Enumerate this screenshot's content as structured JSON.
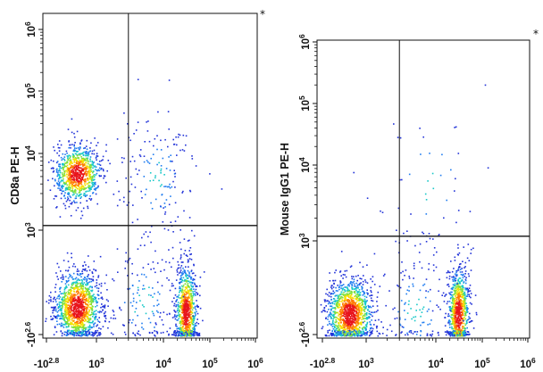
{
  "chart_data": [
    {
      "type": "scatter",
      "title": "",
      "ylabel": "CD8a PE-H",
      "xlabel": "",
      "xscale": "biexponential-log",
      "yscale": "biexponential-log",
      "xlim": [
        -631,
        1000000
      ],
      "ylim": [
        -398,
        1000000
      ],
      "x_ticks": [
        {
          "value": -631,
          "label": "-10",
          "exp": "2.8"
        },
        {
          "value": 1000,
          "label": "10",
          "exp": "3"
        },
        {
          "value": 10000,
          "label": "10",
          "exp": "4"
        },
        {
          "value": 100000,
          "label": "10",
          "exp": "5"
        },
        {
          "value": 1000000,
          "label": "10",
          "exp": "6"
        }
      ],
      "y_ticks": [
        {
          "value": -398,
          "label": "-10",
          "exp": "2.6"
        },
        {
          "value": 1000,
          "label": "10",
          "exp": "3"
        },
        {
          "value": 10000,
          "label": "10",
          "exp": "4"
        },
        {
          "value": 100000,
          "label": "10",
          "exp": "5"
        },
        {
          "value": 1000000,
          "label": "10",
          "exp": "6"
        }
      ],
      "gate": {
        "x": 3000,
        "y": 1150
      },
      "corner_mark": "*",
      "populations": [
        {
          "x": 600,
          "y": 5500,
          "density": "high"
        },
        {
          "x": 600,
          "y": 250,
          "density": "high"
        },
        {
          "x": 30000,
          "y": 200,
          "density": "high"
        },
        {
          "x": 8000,
          "y": 5000,
          "density": "low"
        },
        {
          "x": 5000,
          "y": 300,
          "density": "low"
        }
      ]
    },
    {
      "type": "scatter",
      "title": "",
      "ylabel": "Mouse IgG1 PE-H",
      "xlabel": "",
      "xscale": "biexponential-log",
      "yscale": "biexponential-log",
      "xlim": [
        -631,
        1000000
      ],
      "ylim": [
        -398,
        1000000
      ],
      "x_ticks": [
        {
          "value": -631,
          "label": "-10",
          "exp": "2.8"
        },
        {
          "value": 1000,
          "label": "10",
          "exp": "3"
        },
        {
          "value": 10000,
          "label": "10",
          "exp": "4"
        },
        {
          "value": 100000,
          "label": "10",
          "exp": "5"
        },
        {
          "value": 1000000,
          "label": "10",
          "exp": "6"
        }
      ],
      "y_ticks": [
        {
          "value": -398,
          "label": "-10",
          "exp": "2.6"
        },
        {
          "value": 1000,
          "label": "10",
          "exp": "3"
        },
        {
          "value": 10000,
          "label": "10",
          "exp": "4"
        },
        {
          "value": 100000,
          "label": "10",
          "exp": "5"
        },
        {
          "value": 1000000,
          "label": "10",
          "exp": "6"
        }
      ],
      "gate": {
        "x": 3000,
        "y": 1150
      },
      "corner_mark": "*",
      "populations": [
        {
          "x": 600,
          "y": 200,
          "density": "high"
        },
        {
          "x": 30000,
          "y": 200,
          "density": "high"
        },
        {
          "x": 5000,
          "y": 250,
          "density": "low"
        },
        {
          "x": 8000,
          "y": 5000,
          "density": "sparse"
        }
      ]
    }
  ]
}
